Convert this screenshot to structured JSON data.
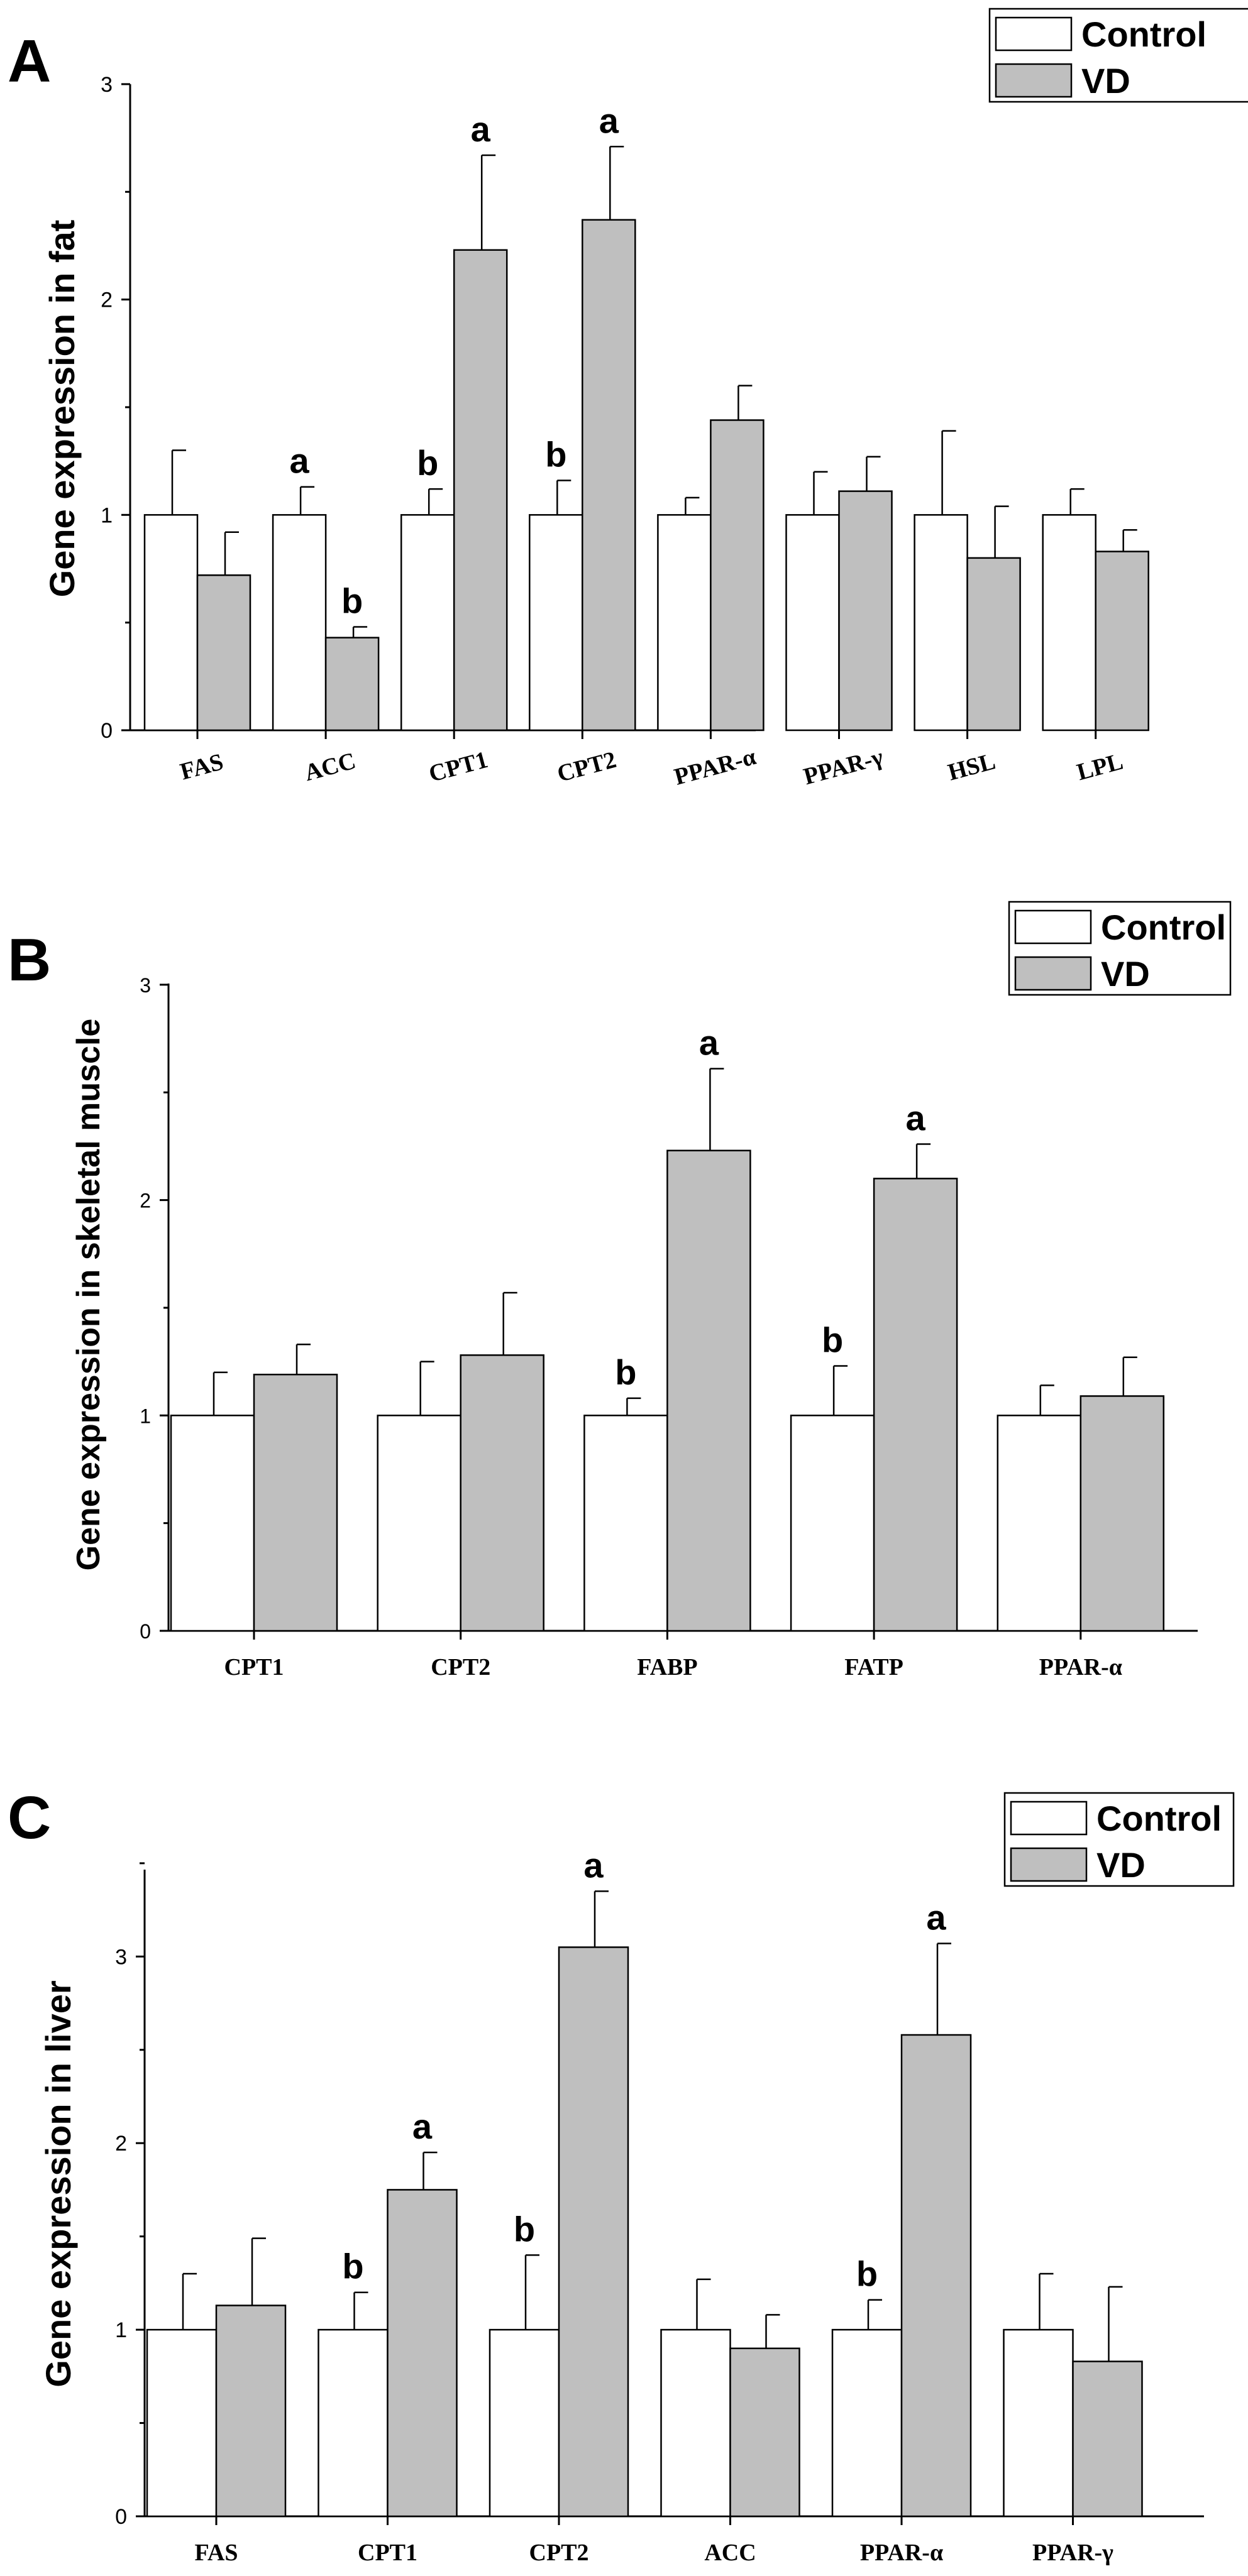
{
  "colors": {
    "control_fill": "#ffffff",
    "vd_fill": "#bfbfbf",
    "stroke": "#000000"
  },
  "chart_data": [
    {
      "panel": "A",
      "type": "bar",
      "ylabel": "Gene expression in fat",
      "ylim": [
        0,
        3
      ],
      "yticks": [
        "0",
        "1",
        "2",
        "3"
      ],
      "categories": [
        "FAS",
        "ACC",
        "CPT1",
        "CPT2",
        "PPAR-α",
        "PPAR-γ",
        "HSL",
        "LPL"
      ],
      "series": [
        {
          "name": "Control",
          "values": [
            1.0,
            1.0,
            1.0,
            1.0,
            1.0,
            1.0,
            1.0,
            1.0
          ],
          "errors": [
            0.3,
            0.13,
            0.12,
            0.16,
            0.08,
            0.2,
            0.39,
            0.12
          ],
          "labels": [
            "",
            "a",
            "b",
            "b",
            "",
            "",
            "",
            ""
          ]
        },
        {
          "name": "VD",
          "values": [
            0.72,
            0.43,
            2.23,
            2.37,
            1.44,
            1.11,
            0.8,
            0.83
          ],
          "errors": [
            0.2,
            0.05,
            0.44,
            0.34,
            0.16,
            0.16,
            0.24,
            0.1
          ],
          "labels": [
            "",
            "b",
            "a",
            "a",
            "",
            "",
            "",
            ""
          ]
        }
      ],
      "legend_position": "top-right",
      "grid": false
    },
    {
      "panel": "B",
      "type": "bar",
      "ylabel": "Gene expression in skeletal muscle",
      "ylim": [
        0,
        3
      ],
      "yticks": [
        "0",
        "1",
        "2",
        "3"
      ],
      "categories": [
        "CPT1",
        "CPT2",
        "FABP",
        "FATP",
        "PPAR-α"
      ],
      "series": [
        {
          "name": "Control",
          "values": [
            1.0,
            1.0,
            1.0,
            1.0,
            1.0
          ],
          "errors": [
            0.2,
            0.25,
            0.08,
            0.23,
            0.14
          ],
          "labels": [
            "",
            "",
            "b",
            "b",
            ""
          ]
        },
        {
          "name": "VD",
          "values": [
            1.19,
            1.28,
            2.23,
            2.1,
            1.09
          ],
          "errors": [
            0.14,
            0.29,
            0.38,
            0.16,
            0.18
          ],
          "labels": [
            "",
            "",
            "a",
            "a",
            ""
          ]
        }
      ],
      "legend_position": "top-right",
      "grid": false
    },
    {
      "panel": "C",
      "type": "bar",
      "ylabel": "Gene expression in liver",
      "ylim": [
        0,
        3.5
      ],
      "yticks": [
        "0",
        "1",
        "2",
        "3"
      ],
      "categories": [
        "FAS",
        "CPT1",
        "CPT2",
        "ACC",
        "PPAR-α",
        "PPAR-γ"
      ],
      "series": [
        {
          "name": "Control",
          "values": [
            1.0,
            1.0,
            1.0,
            1.0,
            1.0,
            1.0
          ],
          "errors": [
            0.3,
            0.2,
            0.4,
            0.27,
            0.16,
            0.3
          ],
          "labels": [
            "",
            "b",
            "b",
            "",
            "b",
            ""
          ]
        },
        {
          "name": "VD",
          "values": [
            1.13,
            1.75,
            3.05,
            0.9,
            2.58,
            0.83
          ],
          "errors": [
            0.36,
            0.2,
            0.3,
            0.18,
            0.49,
            0.4
          ],
          "labels": [
            "",
            "a",
            "a",
            "",
            "a",
            ""
          ]
        }
      ],
      "legend_position": "top-right",
      "grid": false
    }
  ]
}
